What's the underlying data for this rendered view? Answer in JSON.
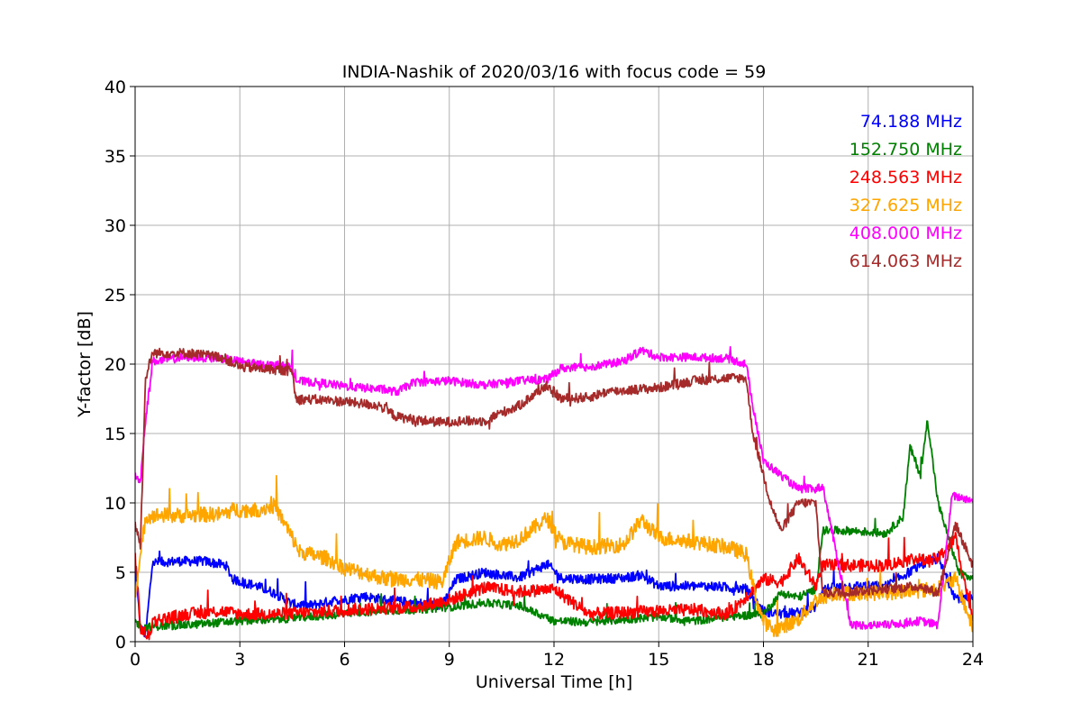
{
  "chart_data": {
    "type": "line",
    "title": "INDIA-Nashik of 2020/03/16 with focus code = 59",
    "xlabel": "Universal Time [h]",
    "ylabel": "Y-factor [dB]",
    "xlim": [
      0,
      24
    ],
    "ylim": [
      0,
      40
    ],
    "xticks": [
      0,
      3,
      6,
      9,
      12,
      15,
      18,
      21,
      24
    ],
    "yticks": [
      0,
      5,
      10,
      15,
      20,
      25,
      30,
      35,
      40
    ],
    "xtick_labels": [
      "0",
      "3",
      "6",
      "9",
      "12",
      "15",
      "18",
      "21",
      "24"
    ],
    "ytick_labels": [
      "0",
      "5",
      "10",
      "15",
      "20",
      "25",
      "30",
      "35",
      "40"
    ],
    "grid": true,
    "legend_placement": "top-right",
    "series": [
      {
        "name": "74.188 MHz",
        "color": "#0000ff",
        "noise": 0.35,
        "x": [
          0,
          0.15,
          0.3,
          0.5,
          1.2,
          2.0,
          2.6,
          2.8,
          3.5,
          4.0,
          4.5,
          5.0,
          5.8,
          6.0,
          6.5,
          7.2,
          8.0,
          8.8,
          9.2,
          10.0,
          10.5,
          11.0,
          11.8,
          12.2,
          13.0,
          14.0,
          14.5,
          15.0,
          15.5,
          16.5,
          17.5,
          18.0,
          18.5,
          19.0,
          19.5,
          19.7,
          20.5,
          21.5,
          22.5,
          23.0,
          23.5,
          24.0
        ],
        "y": [
          5.5,
          1.0,
          0.5,
          5.7,
          5.8,
          5.8,
          5.5,
          4.5,
          4.0,
          3.5,
          2.7,
          2.6,
          3.0,
          3.0,
          3.3,
          3.0,
          2.8,
          2.6,
          4.5,
          5.0,
          4.8,
          4.6,
          5.6,
          4.6,
          4.5,
          4.6,
          4.8,
          4.0,
          4.0,
          4.0,
          3.8,
          2.2,
          2.0,
          2.1,
          2.5,
          3.8,
          4.0,
          4.0,
          5.5,
          6.0,
          3.2,
          3.0
        ]
      },
      {
        "name": "152.750 MHz",
        "color": "#008000",
        "noise": 0.3,
        "x": [
          0,
          0.2,
          0.5,
          1.5,
          2.5,
          3.0,
          4.0,
          5.0,
          6.0,
          7.0,
          8.0,
          9.0,
          10.0,
          11.0,
          12.0,
          13.0,
          14.0,
          15.0,
          16.0,
          17.0,
          18.0,
          18.5,
          19.0,
          19.5,
          19.7,
          20.5,
          21.5,
          22.0,
          22.2,
          22.5,
          22.7,
          23.0,
          23.3,
          23.6,
          24.0
        ],
        "y": [
          1.5,
          1.0,
          1.1,
          1.2,
          1.4,
          1.5,
          1.6,
          1.8,
          2.0,
          2.2,
          2.3,
          2.5,
          2.8,
          2.6,
          1.5,
          1.4,
          1.6,
          1.8,
          1.5,
          1.8,
          2.0,
          3.5,
          3.2,
          3.8,
          8.0,
          8.0,
          7.8,
          9.0,
          14.0,
          12.0,
          16.0,
          10.0,
          7.5,
          5.0,
          4.5
        ]
      },
      {
        "name": "248.563 MHz",
        "color": "#ff0000",
        "noise": 0.45,
        "x": [
          0,
          0.15,
          0.4,
          0.5,
          1.5,
          2.5,
          3.0,
          4.0,
          5.0,
          6.0,
          7.0,
          8.0,
          9.0,
          10.0,
          11.0,
          12.0,
          13.0,
          14.0,
          15.0,
          16.0,
          17.0,
          18.0,
          18.5,
          19.0,
          19.5,
          19.7,
          20.5,
          21.5,
          22.0,
          22.3,
          22.7,
          23.0,
          23.5,
          24.0
        ],
        "y": [
          6.5,
          1.0,
          0.3,
          1.5,
          2.0,
          2.2,
          2.0,
          2.0,
          2.1,
          2.3,
          2.4,
          2.5,
          3.0,
          3.9,
          3.6,
          3.8,
          2.0,
          2.1,
          2.2,
          2.3,
          2.0,
          4.5,
          4.3,
          6.0,
          4.0,
          5.5,
          5.5,
          5.5,
          5.8,
          6.0,
          5.8,
          6.0,
          7.5,
          1.5
        ]
      },
      {
        "name": "327.625 MHz",
        "color": "#ffa500",
        "noise": 0.55,
        "x": [
          0,
          0.15,
          0.3,
          0.5,
          1.5,
          2.5,
          2.8,
          3.5,
          4.0,
          4.5,
          4.7,
          5.5,
          6.0,
          6.5,
          7.2,
          8.0,
          8.8,
          9.2,
          10.0,
          10.5,
          11.0,
          11.8,
          12.2,
          13.0,
          14.0,
          14.5,
          15.0,
          16.0,
          17.0,
          17.5,
          17.8,
          18.0,
          18.3,
          19.0,
          19.5,
          20.0,
          21.0,
          22.0,
          23.0,
          23.5,
          24.0
        ],
        "y": [
          3.5,
          6.0,
          9.0,
          9.1,
          9.1,
          9.2,
          9.5,
          9.5,
          9.8,
          7.5,
          6.5,
          6.0,
          5.3,
          5.0,
          4.5,
          4.5,
          4.3,
          7.2,
          7.5,
          7.0,
          7.4,
          8.9,
          7.2,
          6.8,
          7.0,
          8.8,
          7.5,
          7.2,
          6.8,
          6.3,
          3.0,
          1.5,
          0.8,
          1.6,
          3.0,
          3.5,
          3.5,
          3.6,
          3.8,
          4.5,
          1.0
        ]
      },
      {
        "name": "408.000 MHz",
        "color": "#ff00ff",
        "noise": 0.3,
        "x": [
          0,
          0.15,
          0.3,
          0.5,
          1.5,
          2.5,
          3.5,
          4.5,
          4.6,
          5.5,
          6.0,
          7.0,
          7.5,
          8.0,
          9.0,
          10.0,
          11.0,
          11.8,
          12.2,
          13.0,
          14.0,
          14.5,
          15.0,
          16.0,
          17.0,
          17.5,
          17.7,
          18.0,
          18.5,
          19.0,
          19.5,
          19.7,
          20.5,
          21.5,
          22.5,
          23.0,
          23.4,
          24.0
        ],
        "y": [
          12.0,
          11.5,
          16.0,
          20.2,
          20.5,
          20.4,
          20.0,
          19.8,
          18.8,
          18.6,
          18.4,
          18.2,
          18.0,
          18.7,
          18.8,
          18.5,
          18.8,
          18.9,
          19.7,
          19.8,
          20.2,
          21.0,
          20.5,
          20.5,
          20.4,
          20.0,
          17.0,
          13.0,
          12.0,
          11.0,
          11.0,
          11.2,
          1.2,
          1.2,
          1.5,
          1.2,
          10.5,
          10.2
        ]
      },
      {
        "name": "614.063 MHz",
        "color": "#a52a2a",
        "noise": 0.35,
        "x": [
          0,
          0.15,
          0.3,
          0.5,
          1.5,
          2.5,
          3.0,
          4.0,
          4.5,
          4.6,
          5.5,
          6.0,
          7.0,
          7.5,
          8.0,
          8.8,
          9.2,
          10.0,
          10.5,
          11.0,
          11.8,
          12.2,
          13.0,
          13.5,
          14.5,
          15.0,
          16.0,
          17.0,
          17.5,
          17.7,
          18.0,
          18.2,
          18.5,
          19.0,
          19.5,
          19.7,
          20.5,
          21.5,
          22.5,
          23.0,
          23.5,
          24.0
        ],
        "y": [
          8.5,
          7.0,
          19.0,
          20.8,
          20.8,
          20.5,
          19.8,
          19.6,
          19.5,
          17.5,
          17.4,
          17.3,
          17.0,
          16.2,
          16.0,
          15.8,
          15.9,
          15.9,
          16.5,
          17.0,
          18.5,
          17.5,
          17.6,
          18.0,
          18.2,
          18.3,
          18.8,
          19.0,
          19.0,
          15.0,
          12.0,
          10.0,
          8.0,
          10.0,
          10.0,
          3.5,
          3.6,
          3.8,
          4.0,
          3.5,
          8.5,
          5.5
        ]
      }
    ]
  }
}
